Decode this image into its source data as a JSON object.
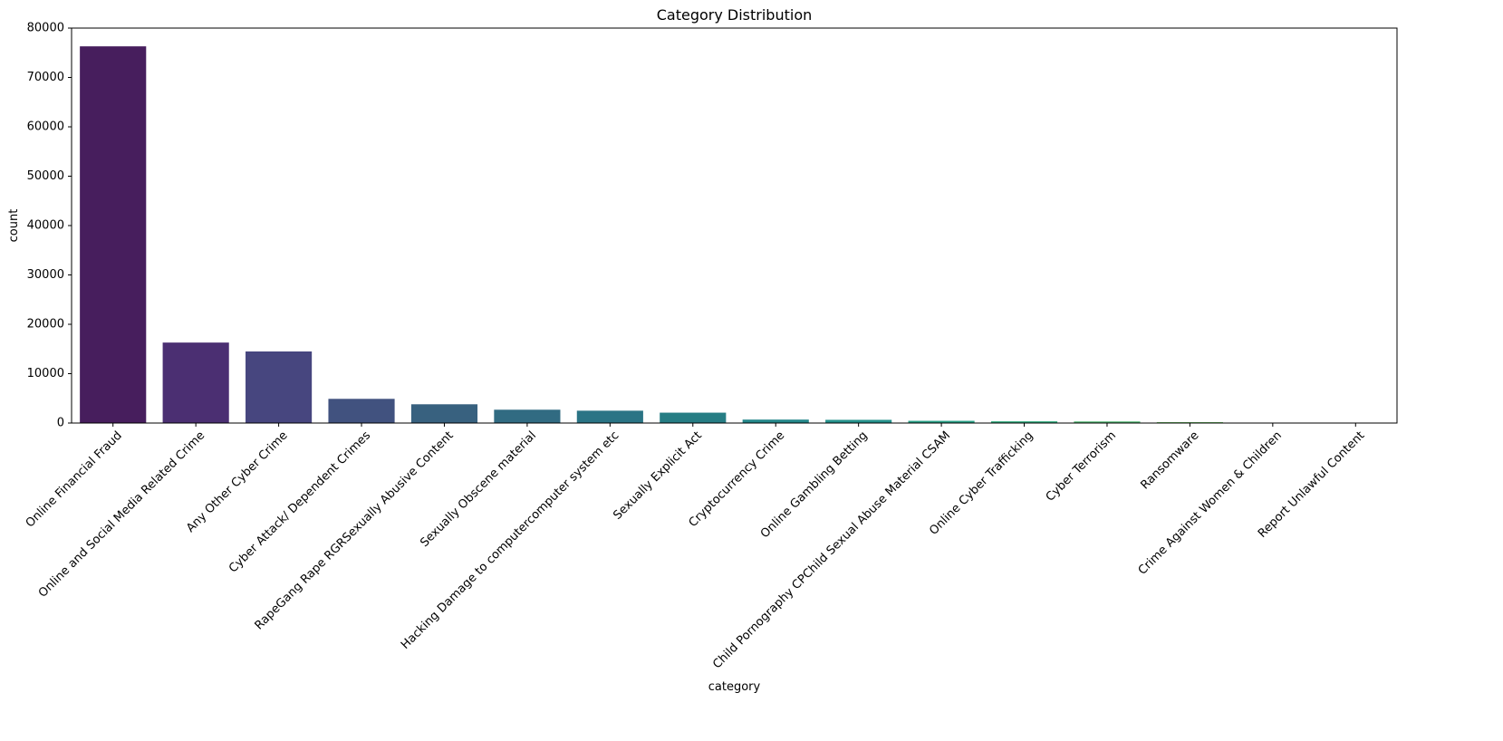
{
  "chart_data": {
    "type": "bar",
    "title": "Category Distribution",
    "xlabel": "category",
    "ylabel": "count",
    "ylim": [
      0,
      80000
    ],
    "yticks": [
      0,
      10000,
      20000,
      30000,
      40000,
      50000,
      60000,
      70000,
      80000
    ],
    "grid": false,
    "palette": "viridis",
    "categories": [
      "Online Financial Fraud",
      "Online and Social Media Related Crime",
      "Any Other Cyber Crime",
      "Cyber Attack/ Dependent Crimes",
      "RapeGang Rape RGRSexually Abusive Content",
      "Sexually Obscene material",
      "Hacking  Damage to computercomputer system etc",
      "Sexually Explicit Act",
      "Cryptocurrency Crime",
      "Online Gambling  Betting",
      "Child Pornography CPChild Sexual Abuse Material CSAM",
      "Online Cyber Trafficking",
      "Cyber Terrorism",
      "Ransomware",
      "Crime Against Women & Children",
      "Report Unlawful Content"
    ],
    "values": [
      76300,
      16300,
      14500,
      4900,
      3800,
      2700,
      2500,
      2100,
      700,
      650,
      450,
      350,
      320,
      180,
      20,
      10
    ],
    "colors": [
      "#471e5d",
      "#4b2f72",
      "#47467f",
      "#41527f",
      "#38617f",
      "#316b82",
      "#2a7485",
      "#267d84",
      "#25888a",
      "#25928c",
      "#28a086",
      "#30aa7c",
      "#4bb36d",
      "#68bd5e",
      "#8fc84a",
      "#b5d33b"
    ]
  }
}
